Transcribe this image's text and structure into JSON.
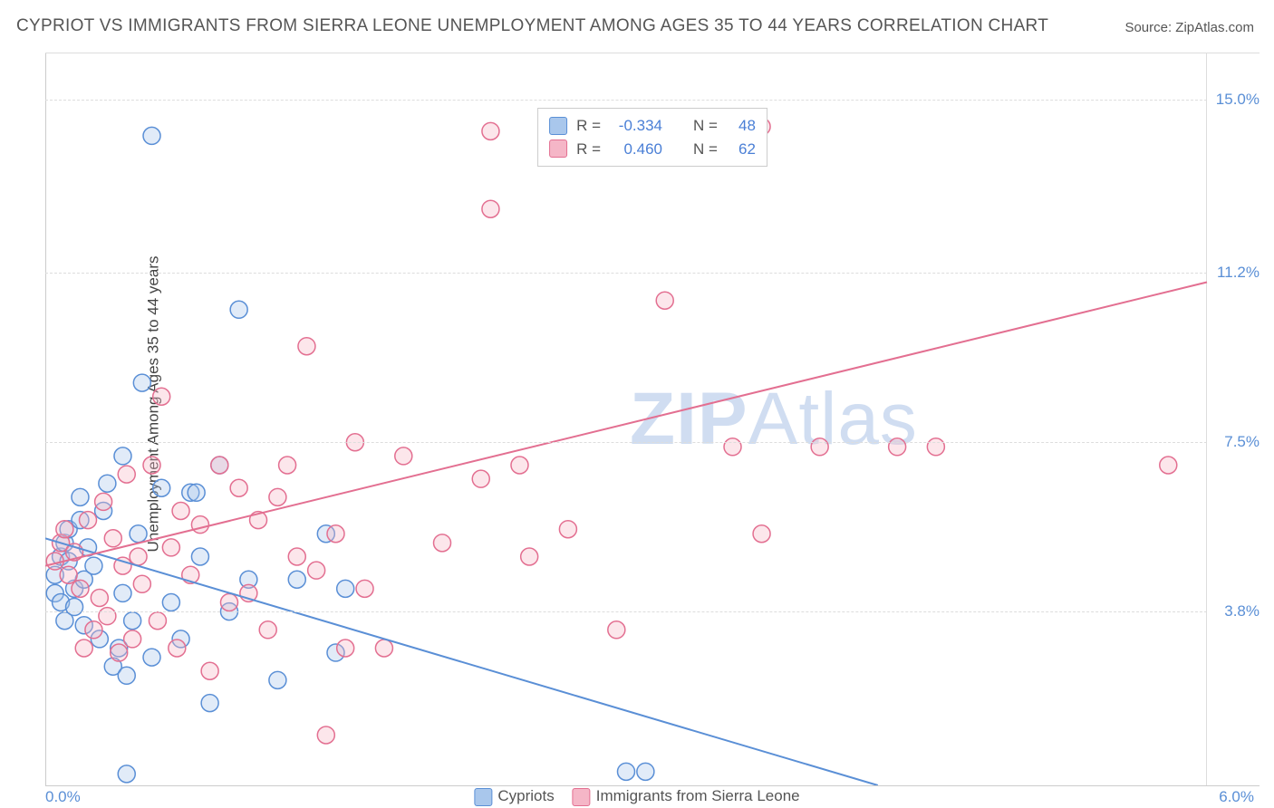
{
  "title": "CYPRIOT VS IMMIGRANTS FROM SIERRA LEONE UNEMPLOYMENT AMONG AGES 35 TO 44 YEARS CORRELATION CHART",
  "source": "Source: ZipAtlas.com",
  "ylabel": "Unemployment Among Ages 35 to 44 years",
  "watermark_bold": "ZIP",
  "watermark_thin": "Atlas",
  "chart": {
    "type": "scatter",
    "xlim": [
      0.0,
      6.0
    ],
    "ylim": [
      0.0,
      16.0
    ],
    "y_gridlines": [
      3.8,
      7.5,
      11.2,
      15.0
    ],
    "x_ticks": {
      "left": "0.0%",
      "right": "6.0%"
    },
    "background_color": "#ffffff",
    "grid_color": "#dddddd",
    "axis_color": "#cccccc",
    "ytick_color": "#5a8fd6",
    "ytick_fontsize": 17,
    "title_color": "#555555",
    "title_fontsize": 19,
    "marker_radius": 9.5,
    "marker_stroke_width": 1.5,
    "marker_fill_opacity": 0.35,
    "trend_line_width": 2,
    "series": [
      {
        "name": "Cypriots",
        "color_stroke": "#5a8fd6",
        "color_fill": "#a9c7ec",
        "R": "-0.334",
        "N": "48",
        "trend": {
          "x1": 0.0,
          "y1": 5.4,
          "x2": 4.3,
          "y2": 0.0
        },
        "points": [
          [
            0.05,
            4.2
          ],
          [
            0.05,
            4.6
          ],
          [
            0.08,
            5.0
          ],
          [
            0.08,
            4.0
          ],
          [
            0.1,
            3.6
          ],
          [
            0.1,
            5.3
          ],
          [
            0.12,
            4.9
          ],
          [
            0.12,
            5.6
          ],
          [
            0.15,
            4.3
          ],
          [
            0.15,
            3.9
          ],
          [
            0.18,
            5.8
          ],
          [
            0.18,
            6.3
          ],
          [
            0.2,
            4.5
          ],
          [
            0.2,
            3.5
          ],
          [
            0.22,
            5.2
          ],
          [
            0.25,
            4.8
          ],
          [
            0.28,
            3.2
          ],
          [
            0.3,
            6.0
          ],
          [
            0.32,
            6.6
          ],
          [
            0.35,
            2.6
          ],
          [
            0.38,
            3.0
          ],
          [
            0.4,
            4.2
          ],
          [
            0.4,
            7.2
          ],
          [
            0.42,
            2.4
          ],
          [
            0.42,
            0.25
          ],
          [
            0.45,
            3.6
          ],
          [
            0.48,
            5.5
          ],
          [
            0.5,
            8.8
          ],
          [
            0.55,
            2.8
          ],
          [
            0.55,
            14.2
          ],
          [
            0.6,
            6.5
          ],
          [
            0.65,
            4.0
          ],
          [
            0.7,
            3.2
          ],
          [
            0.75,
            6.4
          ],
          [
            0.78,
            6.4
          ],
          [
            0.8,
            5.0
          ],
          [
            0.85,
            1.8
          ],
          [
            0.9,
            7.0
          ],
          [
            0.95,
            3.8
          ],
          [
            1.0,
            10.4
          ],
          [
            1.05,
            4.5
          ],
          [
            1.2,
            2.3
          ],
          [
            1.3,
            4.5
          ],
          [
            1.45,
            5.5
          ],
          [
            1.5,
            2.9
          ],
          [
            1.55,
            4.3
          ],
          [
            3.0,
            0.3
          ],
          [
            3.1,
            0.3
          ]
        ]
      },
      {
        "name": "Immigrants from Sierra Leone",
        "color_stroke": "#e36f91",
        "color_fill": "#f5b6c7",
        "R": "0.460",
        "N": "62",
        "trend": {
          "x1": 0.0,
          "y1": 4.8,
          "x2": 6.0,
          "y2": 11.0
        },
        "points": [
          [
            0.05,
            4.9
          ],
          [
            0.08,
            5.3
          ],
          [
            0.1,
            5.6
          ],
          [
            0.12,
            4.6
          ],
          [
            0.15,
            5.1
          ],
          [
            0.18,
            4.3
          ],
          [
            0.2,
            3.0
          ],
          [
            0.22,
            5.8
          ],
          [
            0.25,
            3.4
          ],
          [
            0.28,
            4.1
          ],
          [
            0.3,
            6.2
          ],
          [
            0.32,
            3.7
          ],
          [
            0.35,
            5.4
          ],
          [
            0.38,
            2.9
          ],
          [
            0.4,
            4.8
          ],
          [
            0.42,
            6.8
          ],
          [
            0.45,
            3.2
          ],
          [
            0.48,
            5.0
          ],
          [
            0.5,
            4.4
          ],
          [
            0.55,
            7.0
          ],
          [
            0.58,
            3.6
          ],
          [
            0.6,
            8.5
          ],
          [
            0.65,
            5.2
          ],
          [
            0.68,
            3.0
          ],
          [
            0.7,
            6.0
          ],
          [
            0.75,
            4.6
          ],
          [
            0.8,
            5.7
          ],
          [
            0.85,
            2.5
          ],
          [
            0.9,
            7.0
          ],
          [
            0.95,
            4.0
          ],
          [
            1.0,
            6.5
          ],
          [
            1.05,
            4.2
          ],
          [
            1.1,
            5.8
          ],
          [
            1.15,
            3.4
          ],
          [
            1.2,
            6.3
          ],
          [
            1.25,
            7.0
          ],
          [
            1.3,
            5.0
          ],
          [
            1.35,
            9.6
          ],
          [
            1.4,
            4.7
          ],
          [
            1.45,
            1.1
          ],
          [
            1.5,
            5.5
          ],
          [
            1.55,
            3.0
          ],
          [
            1.6,
            7.5
          ],
          [
            1.65,
            4.3
          ],
          [
            1.75,
            3.0
          ],
          [
            1.85,
            7.2
          ],
          [
            2.05,
            5.3
          ],
          [
            2.25,
            6.7
          ],
          [
            2.3,
            12.6
          ],
          [
            2.3,
            14.3
          ],
          [
            2.45,
            7.0
          ],
          [
            2.5,
            5.0
          ],
          [
            2.7,
            5.6
          ],
          [
            2.95,
            3.4
          ],
          [
            3.2,
            10.6
          ],
          [
            3.55,
            7.4
          ],
          [
            3.7,
            14.4
          ],
          [
            3.7,
            5.5
          ],
          [
            4.0,
            7.4
          ],
          [
            4.4,
            7.4
          ],
          [
            5.8,
            7.0
          ],
          [
            4.6,
            7.4
          ]
        ]
      }
    ],
    "top_legend": {
      "border_color": "#cccccc",
      "label_R": "R =",
      "label_N": "N ="
    },
    "bottom_legend": {
      "fontsize": 17,
      "color": "#555555"
    }
  }
}
